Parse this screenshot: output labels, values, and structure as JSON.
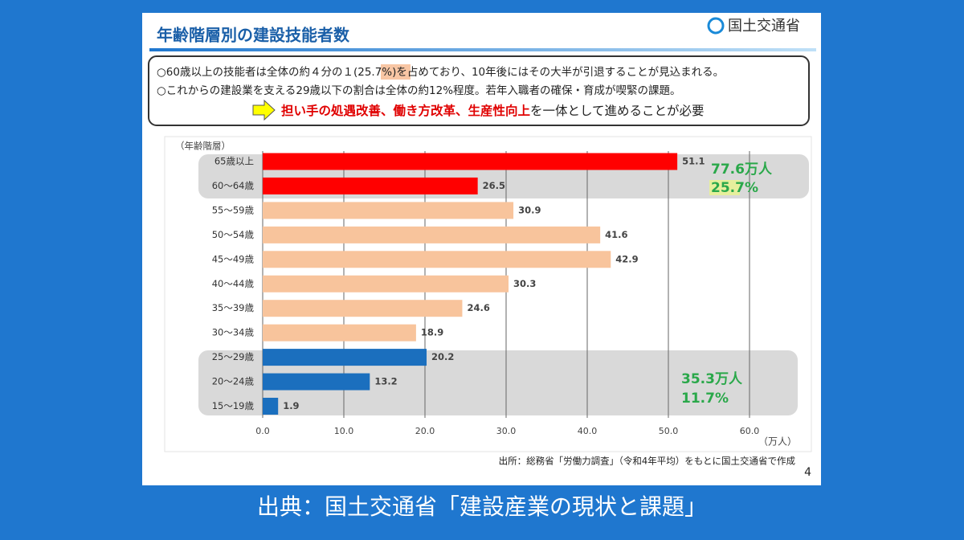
{
  "slide": {
    "title": "年齢階層別の建設技能者数",
    "logo": "国土交通省",
    "box": {
      "line1": [
        "○60歳以上の技能者は全体の約４分の１(",
        "25.7%",
        ")を占めており、10年後にはその大半が引退することが見込まれる。"
      ],
      "line2": "○これからの建設業を支える29歳以下の割合は全体の約12%程度。若年入職者の確保・育成が喫緊の課題。",
      "line3": [
        "担い手の処遇改善、働き方改革、生産性向上",
        "を一体として進めることが必要"
      ]
    },
    "source": "出所：総務省「労働力調査」（令和4年平均）をもとに国土交通省で作成",
    "page": "4",
    "caption": "出典：国土交通省「建設産業の現状と課題」"
  },
  "chart_data": {
    "type": "hbar",
    "y_label": "（年齢階層）",
    "x_label": "（万人）",
    "categories": [
      "65歳以上",
      "60～64歳",
      "55～59歳",
      "50～54歳",
      "45～49歳",
      "40～44歳",
      "35～39歳",
      "30～34歳",
      "25～29歳",
      "20～24歳",
      "15～19歳"
    ],
    "values": [
      51.1,
      26.5,
      30.9,
      41.6,
      42.9,
      30.3,
      24.6,
      18.9,
      20.2,
      13.2,
      1.9
    ],
    "colors": [
      "#ff0000",
      "#ff0000",
      "#f8c49c",
      "#f8c49c",
      "#f8c49c",
      "#f8c49c",
      "#f8c49c",
      "#f8c49c",
      "#1b6fbe",
      "#1b6fbe",
      "#1b6fbe"
    ],
    "xlim": [
      0,
      60
    ],
    "xticks": [
      {
        "value": 0,
        "label": "0.0"
      },
      {
        "value": 10,
        "label": "10.0"
      },
      {
        "value": 20,
        "label": "20.0"
      },
      {
        "value": 30,
        "label": "30.0"
      },
      {
        "value": 40,
        "label": "40.0"
      },
      {
        "value": 50,
        "label": "50.0"
      },
      {
        "value": 60,
        "label": "60.0"
      }
    ],
    "grid": true,
    "annotations": [
      "77.6万人",
      "25.7%",
      "35.3万人",
      "11.7%"
    ]
  }
}
